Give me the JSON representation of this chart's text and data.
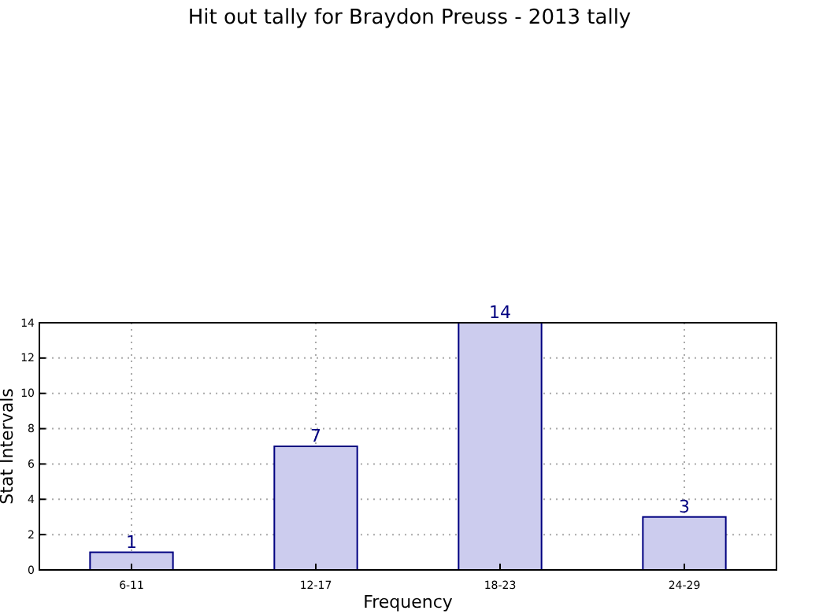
{
  "chart_data": {
    "type": "bar",
    "title": "Hit out tally for Braydon Preuss - 2013 tally",
    "xlabel": "Frequency",
    "ylabel": "Stat Intervals",
    "categories": [
      "6-11",
      "12-17",
      "18-23",
      "24-29"
    ],
    "series": [
      {
        "color": "#ccccee",
        "values": [
          1,
          7,
          14,
          3
        ]
      }
    ],
    "ylim": [
      0,
      14
    ],
    "yticks": [
      0,
      2,
      4,
      6,
      8,
      10,
      12,
      14
    ],
    "grid": true,
    "data_labels": true
  }
}
